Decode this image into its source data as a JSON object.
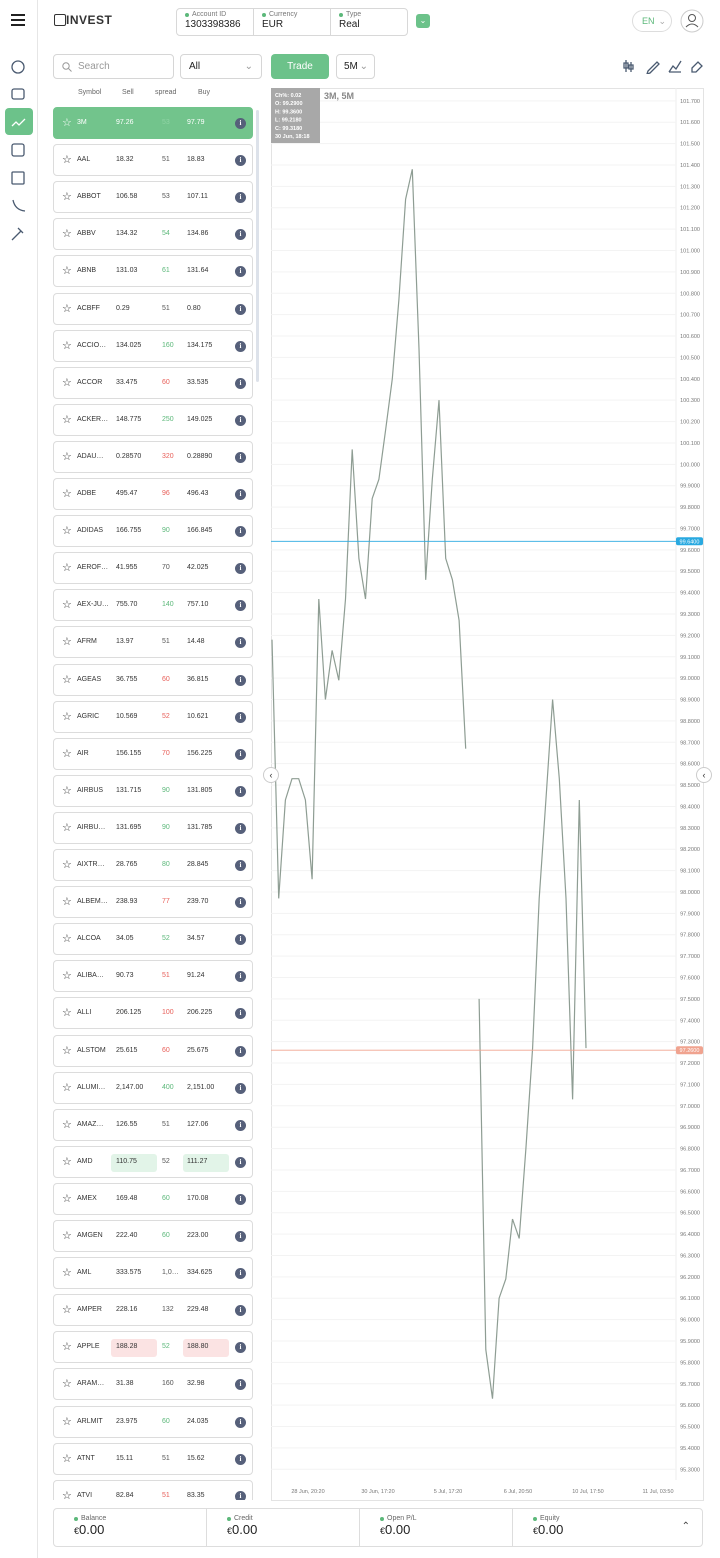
{
  "header": {
    "logo": "INVEST",
    "account_id_label": "Account ID",
    "account_id": "1303398386",
    "currency_label": "Currency",
    "currency": "EUR",
    "type_label": "Type",
    "type": "Real",
    "language": "EN"
  },
  "toolbar": {
    "search_placeholder": "Search",
    "filter": "All",
    "trade_button": "Trade",
    "timeframe": "5M"
  },
  "symbols": {
    "columns": [
      "Symbol",
      "Sell",
      "spread",
      "Buy"
    ],
    "rows": [
      {
        "symbol": "3M",
        "sell": "97.26",
        "spread": "53",
        "buy": "97.79",
        "spread_color": "#8fd3a4",
        "selected": true
      },
      {
        "symbol": "AAL",
        "sell": "18.32",
        "spread": "51",
        "buy": "18.83",
        "spread_color": "#555555"
      },
      {
        "symbol": "ABBOT",
        "sell": "106.58",
        "spread": "53",
        "buy": "107.11",
        "spread_color": "#555555"
      },
      {
        "symbol": "ABBV",
        "sell": "134.32",
        "spread": "54",
        "buy": "134.86",
        "spread_color": "#5cb87a"
      },
      {
        "symbol": "ABNB",
        "sell": "131.03",
        "spread": "61",
        "buy": "131.64",
        "spread_color": "#5cb87a"
      },
      {
        "symbol": "ACBFF",
        "sell": "0.29",
        "spread": "51",
        "buy": "0.80",
        "spread_color": "#555555"
      },
      {
        "symbol": "ACCIO…",
        "sell": "134.025",
        "spread": "160",
        "buy": "134.175",
        "spread_color": "#5cb87a"
      },
      {
        "symbol": "ACCOR",
        "sell": "33.475",
        "spread": "60",
        "buy": "33.535",
        "spread_color": "#e8605a"
      },
      {
        "symbol": "ACKER…",
        "sell": "148.775",
        "spread": "250",
        "buy": "149.025",
        "spread_color": "#5cb87a"
      },
      {
        "symbol": "ADAU…",
        "sell": "0.28570",
        "spread": "320",
        "buy": "0.28890",
        "spread_color": "#e8605a"
      },
      {
        "symbol": "ADBE",
        "sell": "495.47",
        "spread": "96",
        "buy": "496.43",
        "spread_color": "#e8605a"
      },
      {
        "symbol": "ADIDAS",
        "sell": "166.755",
        "spread": "90",
        "buy": "166.845",
        "spread_color": "#5cb87a"
      },
      {
        "symbol": "AEROF…",
        "sell": "41.955",
        "spread": "70",
        "buy": "42.025",
        "spread_color": "#555555"
      },
      {
        "symbol": "AEX-JU…",
        "sell": "755.70",
        "spread": "140",
        "buy": "757.10",
        "spread_color": "#5cb87a"
      },
      {
        "symbol": "AFRM",
        "sell": "13.97",
        "spread": "51",
        "buy": "14.48",
        "spread_color": "#555555"
      },
      {
        "symbol": "AGEAS",
        "sell": "36.755",
        "spread": "60",
        "buy": "36.815",
        "spread_color": "#e8605a"
      },
      {
        "symbol": "AGRIC",
        "sell": "10.569",
        "spread": "52",
        "buy": "10.621",
        "spread_color": "#e8605a"
      },
      {
        "symbol": "AIR",
        "sell": "156.155",
        "spread": "70",
        "buy": "156.225",
        "spread_color": "#e8605a"
      },
      {
        "symbol": "AIRBUS",
        "sell": "131.715",
        "spread": "90",
        "buy": "131.805",
        "spread_color": "#5cb87a"
      },
      {
        "symbol": "AIRBU…",
        "sell": "131.695",
        "spread": "90",
        "buy": "131.785",
        "spread_color": "#5cb87a"
      },
      {
        "symbol": "AIXTR…",
        "sell": "28.765",
        "spread": "80",
        "buy": "28.845",
        "spread_color": "#5cb87a"
      },
      {
        "symbol": "ALBEM…",
        "sell": "238.93",
        "spread": "77",
        "buy": "239.70",
        "spread_color": "#e8605a"
      },
      {
        "symbol": "ALCOA",
        "sell": "34.05",
        "spread": "52",
        "buy": "34.57",
        "spread_color": "#5cb87a"
      },
      {
        "symbol": "ALIBA…",
        "sell": "90.73",
        "spread": "51",
        "buy": "91.24",
        "spread_color": "#e8605a"
      },
      {
        "symbol": "ALLI",
        "sell": "206.125",
        "spread": "100",
        "buy": "206.225",
        "spread_color": "#e8605a"
      },
      {
        "symbol": "ALSTOM",
        "sell": "25.615",
        "spread": "60",
        "buy": "25.675",
        "spread_color": "#e8605a"
      },
      {
        "symbol": "ALUMI…",
        "sell": "2,147.00",
        "spread": "400",
        "buy": "2,151.00",
        "spread_color": "#5cb87a"
      },
      {
        "symbol": "AMAZ…",
        "sell": "126.55",
        "spread": "51",
        "buy": "127.06",
        "spread_color": "#555555"
      },
      {
        "symbol": "AMD",
        "sell": "110.75",
        "spread": "52",
        "buy": "111.27",
        "spread_color": "#555555",
        "highlight": "#e2f4e8"
      },
      {
        "symbol": "AMEX",
        "sell": "169.48",
        "spread": "60",
        "buy": "170.08",
        "spread_color": "#5cb87a"
      },
      {
        "symbol": "AMGEN",
        "sell": "222.40",
        "spread": "60",
        "buy": "223.00",
        "spread_color": "#5cb87a"
      },
      {
        "symbol": "AML",
        "sell": "333.575",
        "spread": "1,0…",
        "buy": "334.625",
        "spread_color": "#555555"
      },
      {
        "symbol": "AMPER",
        "sell": "228.16",
        "spread": "132",
        "buy": "229.48",
        "spread_color": "#555555"
      },
      {
        "symbol": "APPLE",
        "sell": "188.28",
        "spread": "52",
        "buy": "188.80",
        "spread_color": "#5cb87a",
        "highlight": "#fbe3e3"
      },
      {
        "symbol": "ARAM…",
        "sell": "31.38",
        "spread": "160",
        "buy": "32.98",
        "spread_color": "#555555"
      },
      {
        "symbol": "ARLMIT",
        "sell": "23.975",
        "spread": "60",
        "buy": "24.035",
        "spread_color": "#5cb87a"
      },
      {
        "symbol": "ATNT",
        "sell": "15.11",
        "spread": "51",
        "buy": "15.62",
        "spread_color": "#555555"
      },
      {
        "symbol": "ATVI",
        "sell": "82.84",
        "spread": "51",
        "buy": "83.35",
        "spread_color": "#e8605a"
      }
    ]
  },
  "chart": {
    "title": "3M, 5M",
    "ohlc": [
      "Ch%: 0.02",
      "O: 99.2900",
      "H: 99.3600",
      "L: 99.2180",
      "C: 99.3180",
      "30 Jun, 18:18"
    ],
    "ylim": [
      95.25,
      101.76
    ],
    "yticks": [
      {
        "value": 101.7,
        "label": "101.700"
      },
      {
        "value": 101.6,
        "label": "101.600"
      },
      {
        "value": 101.5,
        "label": "101.500"
      },
      {
        "value": 101.4,
        "label": "101.400"
      },
      {
        "value": 101.3,
        "label": "101.300"
      },
      {
        "value": 101.2,
        "label": "101.200"
      },
      {
        "value": 101.1,
        "label": "101.100"
      },
      {
        "value": 101.0,
        "label": "101.000"
      },
      {
        "value": 100.9,
        "label": "100.900"
      },
      {
        "value": 100.8,
        "label": "100.800"
      },
      {
        "value": 100.7,
        "label": "100.700"
      },
      {
        "value": 100.6,
        "label": "100.600"
      },
      {
        "value": 100.5,
        "label": "100.500"
      },
      {
        "value": 100.4,
        "label": "100.400"
      },
      {
        "value": 100.3,
        "label": "100.300"
      },
      {
        "value": 100.2,
        "label": "100.200"
      },
      {
        "value": 100.1,
        "label": "100.100"
      },
      {
        "value": 100.0,
        "label": "100.000"
      },
      {
        "value": 99.9,
        "label": "99.9000"
      },
      {
        "value": 99.8,
        "label": "99.8000"
      },
      {
        "value": 99.7,
        "label": "99.7000"
      },
      {
        "value": 99.6,
        "label": "99.6000"
      },
      {
        "value": 99.5,
        "label": "99.5000"
      },
      {
        "value": 99.4,
        "label": "99.4000"
      },
      {
        "value": 99.3,
        "label": "99.3000"
      },
      {
        "value": 99.2,
        "label": "99.2000"
      },
      {
        "value": 99.1,
        "label": "99.1000"
      },
      {
        "value": 99.0,
        "label": "99.0000"
      },
      {
        "value": 98.9,
        "label": "98.9000"
      },
      {
        "value": 98.8,
        "label": "98.8000"
      },
      {
        "value": 98.7,
        "label": "98.7000"
      },
      {
        "value": 98.6,
        "label": "98.6000"
      },
      {
        "value": 98.5,
        "label": "98.5000"
      },
      {
        "value": 98.4,
        "label": "98.4000"
      },
      {
        "value": 98.3,
        "label": "98.3000"
      },
      {
        "value": 98.2,
        "label": "98.2000"
      },
      {
        "value": 98.1,
        "label": "98.1000"
      },
      {
        "value": 98.0,
        "label": "98.0000"
      },
      {
        "value": 97.9,
        "label": "97.9000"
      },
      {
        "value": 97.8,
        "label": "97.8000"
      },
      {
        "value": 97.7,
        "label": "97.7000"
      },
      {
        "value": 97.6,
        "label": "97.6000"
      },
      {
        "value": 97.5,
        "label": "97.5000"
      },
      {
        "value": 97.4,
        "label": "97.4000"
      },
      {
        "value": 97.3,
        "label": "97.3000"
      },
      {
        "value": 97.2,
        "label": "97.2000"
      },
      {
        "value": 97.1,
        "label": "97.1000"
      },
      {
        "value": 97.0,
        "label": "97.0000"
      },
      {
        "value": 96.9,
        "label": "96.9000"
      },
      {
        "value": 96.8,
        "label": "96.8000"
      },
      {
        "value": 96.7,
        "label": "96.7000"
      },
      {
        "value": 96.6,
        "label": "96.6000"
      },
      {
        "value": 96.5,
        "label": "96.5000"
      },
      {
        "value": 96.4,
        "label": "96.4000"
      },
      {
        "value": 96.3,
        "label": "96.3000"
      },
      {
        "value": 96.2,
        "label": "96.2000"
      },
      {
        "value": 96.1,
        "label": "96.1000"
      },
      {
        "value": 96.0,
        "label": "96.0000"
      },
      {
        "value": 95.9,
        "label": "95.9000"
      },
      {
        "value": 95.8,
        "label": "95.8000"
      },
      {
        "value": 95.7,
        "label": "95.7000"
      },
      {
        "value": 95.6,
        "label": "95.6000"
      },
      {
        "value": 95.5,
        "label": "95.5000"
      },
      {
        "value": 95.4,
        "label": "95.4000"
      },
      {
        "value": 95.3,
        "label": "95.3000"
      }
    ],
    "xticks": [
      "28 Jun, 20:20",
      "30 Jun, 17:20",
      "5 Jul, 17:20",
      "6 Jul, 20:50",
      "10 Jul, 17:50",
      "11 Jul, 03:50"
    ],
    "price_path": {
      "color": "#8e9d93",
      "values": [
        99.18,
        97.97,
        98.43,
        98.53,
        98.53,
        98.43,
        98.06,
        99.37,
        98.9,
        99.13,
        98.99,
        99.37,
        100.07,
        99.56,
        99.37,
        99.84,
        99.93,
        100.16,
        100.4,
        100.77,
        101.24,
        101.38,
        100.54,
        99.46,
        99.93,
        100.3,
        99.56,
        99.46,
        99.27,
        98.67,
        null,
        97.5,
        95.86,
        95.63,
        96.1,
        96.19,
        96.47,
        96.38,
        96.8,
        97.27,
        97.97,
        98.43,
        98.9,
        98.53,
        97.97,
        97.03,
        98.43,
        97.27
      ]
    },
    "price_lines": [
      {
        "value": 99.64,
        "label": "99.6400",
        "color": "#29a9e0"
      },
      {
        "value": 97.26,
        "label": "97.2600",
        "color": "#f0a38f"
      }
    ]
  },
  "footer": {
    "items": [
      {
        "label": "Balance",
        "currency": "€",
        "value": "0.00"
      },
      {
        "label": "Credit",
        "currency": "€",
        "value": "0.00"
      },
      {
        "label": "Open P/L",
        "currency": "€",
        "value": "0.00"
      },
      {
        "label": "Equity",
        "currency": "€",
        "value": "0.00"
      }
    ]
  }
}
